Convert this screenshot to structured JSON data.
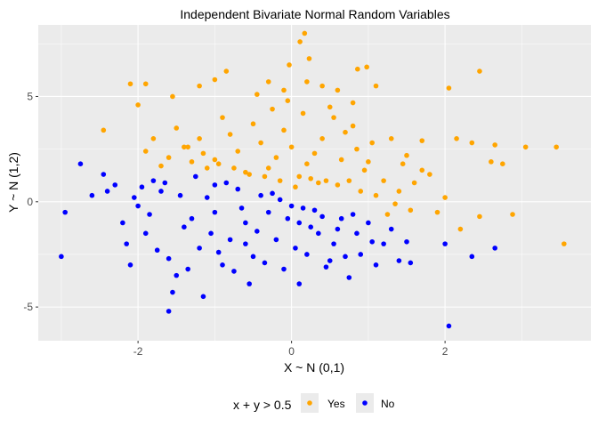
{
  "chart_data": {
    "type": "scatter",
    "title": "Independent Bivariate Normal Random Variables",
    "xlabel": "X ~ N (0,1)",
    "ylabel": "Y ~ N (1,2)",
    "xlim": [
      -3.3,
      3.9
    ],
    "ylim": [
      -6.6,
      8.4
    ],
    "x_ticks": [
      -2,
      0,
      2
    ],
    "y_ticks": [
      -5,
      0,
      5
    ],
    "x_tick_labels": [
      "-2",
      "0",
      "2"
    ],
    "y_tick_labels": [
      "-5",
      "0",
      "5"
    ],
    "grid": true,
    "legend": {
      "title": "x + y > 0.5",
      "position": "bottom",
      "entries": [
        {
          "label": "Yes",
          "color": "#FFA500"
        },
        {
          "label": "No",
          "color": "#0000FF"
        }
      ]
    },
    "colors": {
      "yes": "#FFA500",
      "no": "#0000FF",
      "panel": "#EBEBEB",
      "grid_major": "#FFFFFF"
    },
    "points_note_free": true,
    "series": [
      {
        "key": "yes",
        "color": "#FFA500",
        "points": [
          [
            0.17,
            8.0
          ],
          [
            0.11,
            7.6
          ],
          [
            -0.03,
            6.5
          ],
          [
            0.23,
            6.8
          ],
          [
            0.2,
            5.7
          ],
          [
            0.98,
            6.4
          ],
          [
            0.86,
            6.3
          ],
          [
            2.45,
            6.2
          ],
          [
            -0.85,
            6.2
          ],
          [
            -1.0,
            5.8
          ],
          [
            -1.55,
            5.0
          ],
          [
            -2.0,
            4.6
          ],
          [
            -2.1,
            5.6
          ],
          [
            -1.9,
            5.6
          ],
          [
            -2.45,
            3.4
          ],
          [
            -1.2,
            5.5
          ],
          [
            -0.45,
            5.1
          ],
          [
            -0.3,
            5.7
          ],
          [
            -0.1,
            5.3
          ],
          [
            0.4,
            5.5
          ],
          [
            0.6,
            5.3
          ],
          [
            0.8,
            4.7
          ],
          [
            1.1,
            5.5
          ],
          [
            2.05,
            5.4
          ],
          [
            3.05,
            2.6
          ],
          [
            3.45,
            2.6
          ],
          [
            3.55,
            -2.0
          ],
          [
            2.88,
            -0.6
          ],
          [
            2.15,
            3.0
          ],
          [
            2.35,
            2.8
          ],
          [
            2.65,
            2.7
          ],
          [
            2.6,
            1.9
          ],
          [
            2.75,
            1.8
          ],
          [
            2.45,
            -0.7
          ],
          [
            2.2,
            -1.3
          ],
          [
            1.9,
            -0.5
          ],
          [
            2.0,
            0.2
          ],
          [
            1.7,
            1.5
          ],
          [
            1.5,
            2.2
          ],
          [
            1.3,
            3.0
          ],
          [
            1.7,
            2.9
          ],
          [
            1.2,
            1.0
          ],
          [
            1.4,
            0.5
          ],
          [
            1.55,
            -0.4
          ],
          [
            1.35,
            -0.1
          ],
          [
            1.1,
            0.3
          ],
          [
            0.95,
            1.5
          ],
          [
            0.85,
            2.5
          ],
          [
            0.7,
            3.3
          ],
          [
            0.55,
            4.0
          ],
          [
            0.4,
            3.0
          ],
          [
            0.3,
            2.3
          ],
          [
            0.2,
            1.8
          ],
          [
            0.1,
            1.2
          ],
          [
            0.0,
            2.6
          ],
          [
            -0.1,
            3.4
          ],
          [
            -0.2,
            2.1
          ],
          [
            -0.3,
            1.6
          ],
          [
            -0.4,
            2.8
          ],
          [
            -0.5,
            3.7
          ],
          [
            -0.6,
            1.4
          ],
          [
            -0.7,
            2.4
          ],
          [
            -0.8,
            3.2
          ],
          [
            -0.9,
            4.0
          ],
          [
            -1.0,
            2.0
          ],
          [
            -1.1,
            1.6
          ],
          [
            -1.2,
            3.0
          ],
          [
            -1.3,
            1.9
          ],
          [
            -1.4,
            2.6
          ],
          [
            -1.5,
            3.5
          ],
          [
            -1.6,
            2.1
          ],
          [
            -1.7,
            1.7
          ],
          [
            -1.8,
            3.0
          ],
          [
            -1.9,
            2.4
          ],
          [
            -0.25,
            4.4
          ],
          [
            0.15,
            4.2
          ],
          [
            0.5,
            4.5
          ],
          [
            0.75,
            1.0
          ],
          [
            0.6,
            0.8
          ],
          [
            0.45,
            1.0
          ],
          [
            0.9,
            0.5
          ],
          [
            1.0,
            1.9
          ],
          [
            0.35,
            0.9
          ],
          [
            0.25,
            1.1
          ],
          [
            1.6,
            0.9
          ],
          [
            1.8,
            1.3
          ],
          [
            1.25,
            -0.6
          ],
          [
            1.45,
            1.8
          ],
          [
            0.05,
            0.7
          ],
          [
            -0.15,
            1.0
          ],
          [
            -0.35,
            1.2
          ],
          [
            -0.55,
            1.3
          ],
          [
            -0.75,
            1.6
          ],
          [
            -0.95,
            1.8
          ],
          [
            -1.15,
            2.3
          ],
          [
            -1.35,
            2.6
          ],
          [
            0.65,
            2.0
          ],
          [
            0.8,
            3.6
          ],
          [
            1.05,
            2.8
          ],
          [
            -0.05,
            4.8
          ]
        ]
      },
      {
        "key": "no",
        "color": "#0000FF",
        "points": [
          [
            -3.0,
            -2.6
          ],
          [
            -2.95,
            -0.5
          ],
          [
            -2.75,
            1.8
          ],
          [
            -2.6,
            0.3
          ],
          [
            -2.45,
            1.3
          ],
          [
            -2.4,
            0.5
          ],
          [
            -2.3,
            0.8
          ],
          [
            -2.2,
            -1.0
          ],
          [
            -2.15,
            -2.0
          ],
          [
            -2.1,
            -3.0
          ],
          [
            -2.0,
            -0.2
          ],
          [
            -1.9,
            -1.5
          ],
          [
            -1.8,
            1.0
          ],
          [
            -1.7,
            0.5
          ],
          [
            -1.6,
            -2.7
          ],
          [
            -1.55,
            -4.3
          ],
          [
            -1.5,
            -3.5
          ],
          [
            -1.6,
            -5.2
          ],
          [
            -1.4,
            -1.2
          ],
          [
            -1.3,
            -0.8
          ],
          [
            -1.2,
            -2.2
          ],
          [
            -1.15,
            -4.5
          ],
          [
            -1.1,
            0.2
          ],
          [
            -1.0,
            -0.5
          ],
          [
            -0.9,
            -3.0
          ],
          [
            -0.8,
            -1.8
          ],
          [
            -0.7,
            0.6
          ],
          [
            -0.6,
            -1.0
          ],
          [
            -0.55,
            -3.9
          ],
          [
            -0.5,
            -2.6
          ],
          [
            -0.4,
            0.3
          ],
          [
            -0.3,
            -0.5
          ],
          [
            -0.2,
            -1.8
          ],
          [
            -0.1,
            -3.2
          ],
          [
            0.0,
            -0.2
          ],
          [
            0.1,
            -1.0
          ],
          [
            0.1,
            -3.9
          ],
          [
            0.2,
            -2.5
          ],
          [
            0.3,
            -0.4
          ],
          [
            0.35,
            -1.5
          ],
          [
            0.45,
            -3.1
          ],
          [
            0.55,
            -2.0
          ],
          [
            0.65,
            -0.8
          ],
          [
            0.75,
            -3.6
          ],
          [
            0.85,
            -1.5
          ],
          [
            0.9,
            -2.5
          ],
          [
            1.0,
            -1.0
          ],
          [
            1.1,
            -3.0
          ],
          [
            1.2,
            -2.0
          ],
          [
            1.3,
            -1.3
          ],
          [
            1.4,
            -2.8
          ],
          [
            1.5,
            -1.9
          ],
          [
            1.55,
            -2.9
          ],
          [
            2.0,
            -2.0
          ],
          [
            2.05,
            -5.9
          ],
          [
            2.35,
            -2.6
          ],
          [
            2.65,
            -2.2
          ],
          [
            -1.85,
            -0.6
          ],
          [
            -1.65,
            0.9
          ],
          [
            -1.45,
            0.3
          ],
          [
            -1.25,
            1.2
          ],
          [
            -1.05,
            -1.5
          ],
          [
            -0.85,
            0.9
          ],
          [
            -0.65,
            -0.3
          ],
          [
            -0.45,
            -1.4
          ],
          [
            -0.25,
            0.4
          ],
          [
            -0.05,
            -0.8
          ],
          [
            0.15,
            -0.3
          ],
          [
            -1.75,
            -2.3
          ],
          [
            -1.35,
            -3.2
          ],
          [
            -0.95,
            -2.4
          ],
          [
            -0.75,
            -3.3
          ],
          [
            -0.35,
            -2.9
          ],
          [
            0.05,
            -2.2
          ],
          [
            0.25,
            -1.2
          ],
          [
            0.4,
            -0.7
          ],
          [
            0.6,
            -1.3
          ],
          [
            0.8,
            -0.6
          ],
          [
            0.7,
            -2.6
          ],
          [
            1.05,
            -1.9
          ],
          [
            -2.05,
            0.2
          ],
          [
            -1.95,
            0.7
          ],
          [
            -0.15,
            0.1
          ],
          [
            -0.6,
            -2.0
          ],
          [
            -1.0,
            0.8
          ],
          [
            0.5,
            -2.8
          ]
        ]
      }
    ]
  }
}
